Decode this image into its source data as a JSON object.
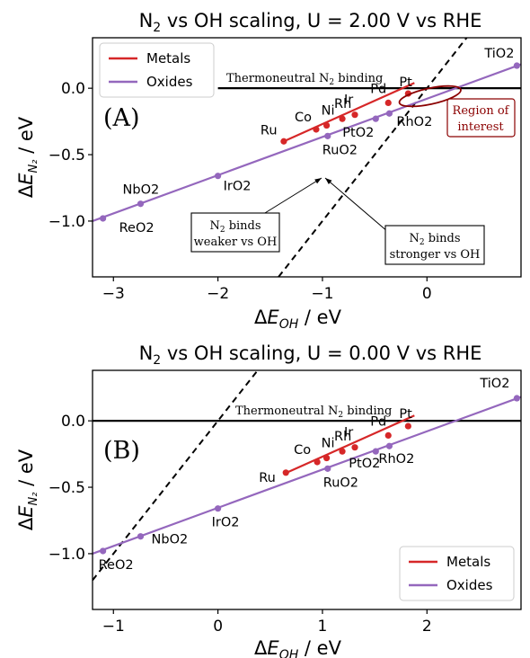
{
  "colors": {
    "metals": "#d62728",
    "oxides": "#9467bd",
    "ref": "#000000",
    "annot": "#8b0000"
  },
  "chart_data": [
    {
      "panel_label": "(A)",
      "type": "line",
      "title": "N₂ vs OH scaling, U = 2.00 V vs RHE",
      "title_parts": {
        "pre": "N",
        "sub": "2",
        "post": " vs OH scaling, U = 2.00 V vs RHE"
      },
      "xlabel": {
        "delta": "Δ",
        "main": "E",
        "sub": "OH",
        "unit": " / eV"
      },
      "ylabel": {
        "delta": "Δ",
        "main": "E",
        "sub": "N₂",
        "unit": " / eV"
      },
      "xlim": [
        -3.2,
        0.9
      ],
      "ylim": [
        -1.42,
        0.38
      ],
      "xticks": [
        -3,
        -2,
        -1,
        0
      ],
      "xtick_labels": [
        "−3",
        "−2",
        "−1",
        "0"
      ],
      "yticks": [
        -1.0,
        -0.5,
        0.0
      ],
      "ytick_labels": [
        "−1.0",
        "−0.5",
        "0.0"
      ],
      "legend": {
        "position": "top-left",
        "entries": [
          "Metals",
          "Oxides"
        ]
      },
      "thermoneutral": {
        "y": 0.0,
        "x_start": -2.0,
        "label_pre": "Thermoneutral N",
        "label_sub": "2",
        "label_post": " binding"
      },
      "parity": {
        "slope": 1.0,
        "intercept": -0.0,
        "style": "dashed"
      },
      "series": [
        {
          "name": "Metals",
          "color_key": "metals",
          "fit": {
            "x": [
              -1.37,
              -0.12
            ],
            "y": [
              -0.4,
              0.04
            ]
          },
          "points": [
            {
              "label": "Ru",
              "x": -1.37,
              "y": -0.4
            },
            {
              "label": "Co",
              "x": -1.06,
              "y": -0.31
            },
            {
              "label": "Ni",
              "x": -0.96,
              "y": -0.28
            },
            {
              "label": "Rh",
              "x": -0.81,
              "y": -0.23
            },
            {
              "label": "Ir",
              "x": -0.69,
              "y": -0.2
            },
            {
              "label": "Pd",
              "x": -0.37,
              "y": -0.11
            },
            {
              "label": "Pt",
              "x": -0.18,
              "y": -0.04
            }
          ]
        },
        {
          "name": "Oxides",
          "color_key": "oxides",
          "fit": {
            "x": [
              -3.2,
              0.9
            ],
            "y": [
              -1.0,
              0.18
            ]
          },
          "points": [
            {
              "label": "ReO2",
              "x": -3.1,
              "y": -0.98
            },
            {
              "label": "NbO2",
              "x": -2.74,
              "y": -0.87
            },
            {
              "label": "IrO2",
              "x": -2.0,
              "y": -0.66
            },
            {
              "label": "RuO2",
              "x": -0.95,
              "y": -0.36
            },
            {
              "label": "PtO2",
              "x": -0.49,
              "y": -0.23
            },
            {
              "label": "RhO2",
              "x": -0.36,
              "y": -0.19
            },
            {
              "label": "TiO2",
              "x": 0.86,
              "y": 0.17
            }
          ]
        }
      ],
      "annotations": {
        "region": {
          "cx": 0.03,
          "cy": -0.06,
          "rx": 0.3,
          "ry": 0.06,
          "angle_deg": -12,
          "line1": "Region of",
          "line2": "interest"
        },
        "weaker": {
          "line1_pre": "N",
          "line1_sub": "2",
          "line1_post": " binds",
          "line2": "weaker vs OH"
        },
        "stronger": {
          "line1_pre": "N",
          "line1_sub": "2",
          "line1_post": " binds",
          "line2": "stronger vs OH"
        }
      }
    },
    {
      "panel_label": "(B)",
      "type": "line",
      "title": "N₂ vs OH scaling, U = 0.00 V vs RHE",
      "title_parts": {
        "pre": "N",
        "sub": "2",
        "post": " vs OH scaling, U = 0.00 V vs RHE"
      },
      "xlabel": {
        "delta": "Δ",
        "main": "E",
        "sub": "OH",
        "unit": " / eV"
      },
      "ylabel": {
        "delta": "Δ",
        "main": "E",
        "sub": "N₂",
        "unit": " / eV"
      },
      "xlim": [
        -1.2,
        2.9
      ],
      "ylim": [
        -1.42,
        0.38
      ],
      "xticks": [
        -1,
        0,
        1,
        2
      ],
      "xtick_labels": [
        "−1",
        "0",
        "1",
        "2"
      ],
      "yticks": [
        -1.0,
        -0.5,
        0.0
      ],
      "ytick_labels": [
        "−1.0",
        "−0.5",
        "0.0"
      ],
      "legend": {
        "position": "bottom-right",
        "entries": [
          "Metals",
          "Oxides"
        ]
      },
      "thermoneutral": {
        "y": 0.0,
        "x_start": -1.2,
        "label_pre": "Thermoneutral N",
        "label_sub": "2",
        "label_post": " binding"
      },
      "parity": {
        "slope": 1.0,
        "intercept": -0.0,
        "style": "dashed"
      },
      "series": [
        {
          "name": "Metals",
          "color_key": "metals",
          "fit": {
            "x": [
              0.63,
              1.88
            ],
            "y": [
              -0.4,
              0.04
            ]
          },
          "points": [
            {
              "label": "Ru",
              "x": 0.65,
              "y": -0.39
            },
            {
              "label": "Co",
              "x": 0.95,
              "y": -0.31
            },
            {
              "label": "Ni",
              "x": 1.04,
              "y": -0.28
            },
            {
              "label": "Rh",
              "x": 1.19,
              "y": -0.23
            },
            {
              "label": "Ir",
              "x": 1.31,
              "y": -0.2
            },
            {
              "label": "Pd",
              "x": 1.63,
              "y": -0.11
            },
            {
              "label": "Pt",
              "x": 1.82,
              "y": -0.04
            }
          ]
        },
        {
          "name": "Oxides",
          "color_key": "oxides",
          "fit": {
            "x": [
              -1.2,
              2.9
            ],
            "y": [
              -1.0,
              0.18
            ]
          },
          "points": [
            {
              "label": "ReO2",
              "x": -1.1,
              "y": -0.98
            },
            {
              "label": "NbO2",
              "x": -0.74,
              "y": -0.87
            },
            {
              "label": "IrO2",
              "x": 0.0,
              "y": -0.66
            },
            {
              "label": "RuO2",
              "x": 1.05,
              "y": -0.36
            },
            {
              "label": "PtO2",
              "x": 1.51,
              "y": -0.23
            },
            {
              "label": "RhO2",
              "x": 1.64,
              "y": -0.19
            },
            {
              "label": "TiO2",
              "x": 2.86,
              "y": 0.17
            }
          ]
        }
      ]
    }
  ]
}
